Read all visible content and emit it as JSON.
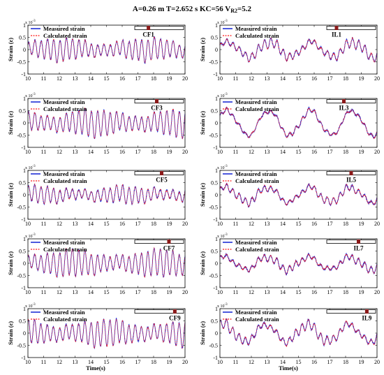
{
  "header": {
    "title": "A=0.26 m   T=2.652 s   KC=56   V",
    "title_sub": "R2",
    "title_end": "=5.2"
  },
  "axes": {
    "ylabel": "Strain (ε)",
    "xlabel": "Time(s)",
    "y_scale": "x 10",
    "y_scale_exp": "-3"
  },
  "legend": {
    "measured": "Measured strain",
    "calculated": "Calculated strain"
  },
  "colors": {
    "measured": "#1f2fd6",
    "calculated": "#ff1a1a",
    "marker": "#8b1a1a"
  },
  "chart_data": [
    {
      "type": "line",
      "panel": "CF1",
      "label": "CF1",
      "xlim": [
        10,
        20
      ],
      "ylim": [
        -1,
        1
      ],
      "xticks": [
        10,
        11,
        12,
        13,
        14,
        15,
        16,
        17,
        18,
        19,
        20
      ],
      "yticks": [
        1,
        0.5,
        0,
        -0.5,
        -1
      ],
      "ytick_labels": [
        "1",
        "0.5",
        "0",
        "-0.5",
        "-1"
      ],
      "marker_position": 0.28,
      "series": [
        {
          "name": "Measured strain"
        },
        {
          "name": "Calculated strain"
        }
      ],
      "dominant_frequency_hz": 2.5,
      "amplitude": 0.45,
      "slow_component_amplitude": 0.05
    },
    {
      "type": "line",
      "panel": "IL1",
      "label": "IL1",
      "xlim": [
        10,
        20
      ],
      "ylim": [
        -1,
        1
      ],
      "xticks": [
        10,
        11,
        12,
        13,
        14,
        15,
        16,
        17,
        18,
        19,
        20
      ],
      "yticks": [
        1,
        0.5,
        0,
        -0.5,
        -1
      ],
      "ytick_labels": [
        "1",
        "0.5",
        "0",
        "-0.5",
        "-1"
      ],
      "marker_position": 0.2,
      "series": [
        {
          "name": "Measured strain"
        },
        {
          "name": "Calculated strain"
        }
      ],
      "dominant_frequency_hz": 2.5,
      "amplitude": 0.2,
      "slow_component_amplitude": 0.3
    },
    {
      "type": "line",
      "panel": "CF3",
      "label": "CF3",
      "xlim": [
        10,
        20
      ],
      "ylim": [
        -1,
        1
      ],
      "xticks": [
        10,
        11,
        12,
        13,
        14,
        15,
        16,
        17,
        18,
        19,
        20
      ],
      "yticks": [
        1,
        0.5,
        0,
        -0.5,
        -1
      ],
      "ytick_labels": [
        "1",
        "0.5",
        "0",
        "-0.5",
        "-1"
      ],
      "marker_position": 0.45,
      "series": [
        {
          "name": "Measured strain"
        },
        {
          "name": "Calculated strain"
        }
      ],
      "dominant_frequency_hz": 2.5,
      "amplitude": 0.55,
      "slow_component_amplitude": 0.05
    },
    {
      "type": "line",
      "panel": "IL3",
      "label": "IL3",
      "xlim": [
        10,
        20
      ],
      "ylim": [
        -1,
        1
      ],
      "xticks": [
        10,
        11,
        12,
        13,
        14,
        15,
        16,
        17,
        18,
        19,
        20
      ],
      "yticks": [
        1,
        0.5,
        0,
        -0.5,
        -1
      ],
      "ytick_labels": [
        "1",
        "0.5",
        "0",
        "-0.5",
        "-1"
      ],
      "marker_position": 0.35,
      "series": [
        {
          "name": "Measured strain"
        },
        {
          "name": "Calculated strain"
        }
      ],
      "dominant_frequency_hz": 2.5,
      "amplitude": 0.1,
      "slow_component_amplitude": 0.5
    },
    {
      "type": "line",
      "panel": "CF5",
      "label": "CF5",
      "xlim": [
        10,
        20
      ],
      "ylim": [
        -1,
        1
      ],
      "xticks": [
        10,
        11,
        12,
        13,
        14,
        15,
        16,
        17,
        18,
        19,
        20
      ],
      "yticks": [
        1,
        0.5,
        0,
        -0.5,
        -1
      ],
      "ytick_labels": [
        "1",
        "0.5",
        "0",
        "-0.5",
        "-1"
      ],
      "marker_position": 0.55,
      "series": [
        {
          "name": "Measured strain"
        },
        {
          "name": "Calculated strain"
        }
      ],
      "dominant_frequency_hz": 2.5,
      "amplitude": 0.35,
      "slow_component_amplitude": 0.05
    },
    {
      "type": "line",
      "panel": "IL5",
      "label": "IL5",
      "xlim": [
        10,
        20
      ],
      "ylim": [
        -1,
        1
      ],
      "xticks": [
        10,
        11,
        12,
        13,
        14,
        15,
        16,
        17,
        18,
        19,
        20
      ],
      "yticks": [
        1,
        0.5,
        0,
        -0.5,
        -1
      ],
      "ytick_labels": [
        "1",
        "0.5",
        "0",
        "-0.5",
        "-1"
      ],
      "marker_position": 0.5,
      "series": [
        {
          "name": "Measured strain"
        },
        {
          "name": "Calculated strain"
        }
      ],
      "dominant_frequency_hz": 2.5,
      "amplitude": 0.15,
      "slow_component_amplitude": 0.3
    },
    {
      "type": "line",
      "panel": "CF7",
      "label": "CF7",
      "xlim": [
        10,
        20
      ],
      "ylim": [
        -1,
        1
      ],
      "xticks": [
        10,
        11,
        12,
        13,
        14,
        15,
        16,
        17,
        18,
        19,
        20
      ],
      "yticks": [
        1,
        0.5,
        0,
        -0.5,
        -1
      ],
      "ytick_labels": [
        "1",
        "0.5",
        "0",
        "-0.5",
        "-1"
      ],
      "marker_position": 0.7,
      "series": [
        {
          "name": "Measured strain"
        },
        {
          "name": "Calculated strain"
        }
      ],
      "dominant_frequency_hz": 2.5,
      "amplitude": 0.55,
      "slow_component_amplitude": 0.05
    },
    {
      "type": "line",
      "panel": "IL7",
      "label": "IL7",
      "xlim": [
        10,
        20
      ],
      "ylim": [
        -1,
        1
      ],
      "xticks": [
        10,
        11,
        12,
        13,
        14,
        15,
        16,
        17,
        18,
        19,
        20
      ],
      "yticks": [
        1,
        0.5,
        0,
        -0.5,
        -1
      ],
      "ytick_labels": [
        "1",
        "0.5",
        "0",
        "-0.5",
        "-1"
      ],
      "marker_position": 0.65,
      "series": [
        {
          "name": "Measured strain"
        },
        {
          "name": "Calculated strain"
        }
      ],
      "dominant_frequency_hz": 2.5,
      "amplitude": 0.15,
      "slow_component_amplitude": 0.25
    },
    {
      "type": "line",
      "panel": "CF9",
      "label": "CF9",
      "xlim": [
        10,
        20
      ],
      "ylim": [
        -1,
        1
      ],
      "xticks": [
        10,
        11,
        12,
        13,
        14,
        15,
        16,
        17,
        18,
        19,
        20
      ],
      "yticks": [
        1,
        0.5,
        0,
        -0.5,
        -1
      ],
      "ytick_labels": [
        "1",
        "0.5",
        "0",
        "-0.5",
        "-1"
      ],
      "marker_position": 0.82,
      "series": [
        {
          "name": "Measured strain"
        },
        {
          "name": "Calculated strain"
        }
      ],
      "dominant_frequency_hz": 2.5,
      "amplitude": 0.55,
      "slow_component_amplitude": 0.05
    },
    {
      "type": "line",
      "panel": "IL9",
      "label": "IL9",
      "xlim": [
        10,
        20
      ],
      "ylim": [
        -1,
        1
      ],
      "xticks": [
        10,
        11,
        12,
        13,
        14,
        15,
        16,
        17,
        18,
        19,
        20
      ],
      "yticks": [
        1,
        0.5,
        0,
        -0.5,
        -1
      ],
      "ytick_labels": [
        "1",
        "0.5",
        "0",
        "-0.5",
        "-1"
      ],
      "marker_position": 0.82,
      "series": [
        {
          "name": "Measured strain"
        },
        {
          "name": "Calculated strain"
        }
      ],
      "dominant_frequency_hz": 2.5,
      "amplitude": 0.2,
      "slow_component_amplitude": 0.35
    }
  ]
}
